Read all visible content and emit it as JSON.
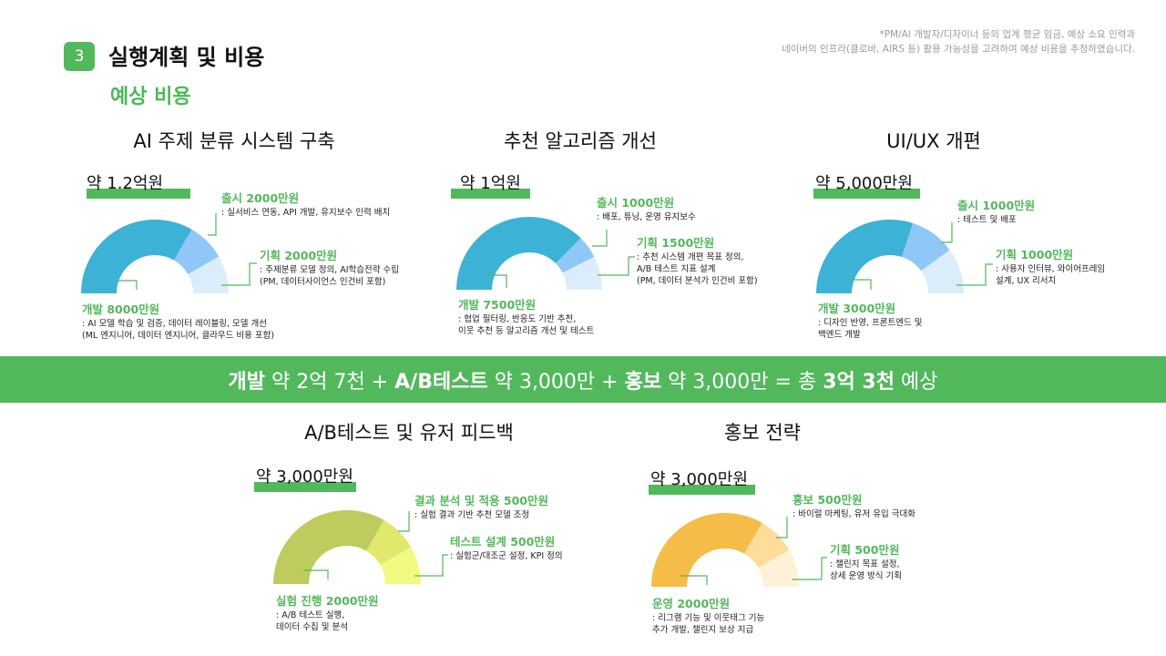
{
  "header": {
    "section_number": "3",
    "section_title": "실행계획 및 비용",
    "subsection_title": "예상 비용",
    "note_lines": [
      "*PM/AI 개발자/디자이너 등의 업계 평균 임금, 예상 소요 인력과",
      "네이버의 인프라(클로바, AIRS 등) 활용 가능성을 고려하여 예상 비용을 추정하였습니다."
    ]
  },
  "summary_banner": {
    "parts": [
      {
        "text": "개발",
        "bold": true
      },
      {
        "text": " 약 2억 7천 + ",
        "bold": false
      },
      {
        "text": "A/B테스트",
        "bold": true
      },
      {
        "text": " 약 3,000만 + ",
        "bold": false
      },
      {
        "text": "홍보",
        "bold": true
      },
      {
        "text": " 약 3,000만 = 총 ",
        "bold": false
      },
      {
        "text": "3억 3천",
        "bold": true
      },
      {
        "text": " 예상",
        "bold": false
      }
    ]
  },
  "chart_data": [
    {
      "type": "pie",
      "shape": "half-donut",
      "title": "AI 주제 분류 시스템 구축",
      "total_label": "약 1.2억원",
      "unit": "만원",
      "accent_color": "#52b85c",
      "slices": [
        {
          "name": "개발",
          "value": 8000,
          "label": "개발 8000만원",
          "desc": ": AI 모델 학습 및 검증, 데이터 레이블링, 모델 개선\n(ML 엔지니어, 데이터 엔지니어, 클라우드 비용 포함)",
          "color": "#3db2d7"
        },
        {
          "name": "출시",
          "value": 2000,
          "label": "출시 2000만원",
          "desc": ": 실서비스 연동, API 개발, 유지보수 인력 배치",
          "color": "#8ec7f8"
        },
        {
          "name": "기획",
          "value": 2000,
          "label": "기획 2000만원",
          "desc": ": 주제분류 모델 정의, AI학습전략 수립\n(PM, 데이터사이언스 인건비 포함)",
          "color": "#dbedfb"
        }
      ]
    },
    {
      "type": "pie",
      "shape": "half-donut",
      "title": "추천 알고리즘 개선",
      "total_label": "약 1억원",
      "unit": "만원",
      "accent_color": "#52b85c",
      "slices": [
        {
          "name": "개발",
          "value": 7500,
          "label": "개발 7500만원",
          "desc": ": 협업 필터링, 반응도 기반 추천,\n이웃 추천 등 알고리즘 개선 및 테스트",
          "color": "#3db2d7"
        },
        {
          "name": "출시",
          "value": 1000,
          "label": "출시 1000만원",
          "desc": ": 배포, 튜닝, 운영 유지보수",
          "color": "#8ec7f8"
        },
        {
          "name": "기획",
          "value": 1500,
          "label": "기획 1500만원",
          "desc": ": 추천 시스템 개편 목표 정의,\nA/B 테스트 지표 설계\n(PM, 데이터 분석가 인건비 포함)",
          "color": "#dbedfb"
        }
      ]
    },
    {
      "type": "pie",
      "shape": "half-donut",
      "title": "UI/UX 개편",
      "total_label": "약 5,000만원",
      "unit": "만원",
      "accent_color": "#52b85c",
      "slices": [
        {
          "name": "개발",
          "value": 3000,
          "label": "개발 3000만원",
          "desc": ": 디자인 반영, 프론트엔드 및\n백엔드 개발",
          "color": "#3db2d7"
        },
        {
          "name": "출시",
          "value": 1000,
          "label": "출시 1000만원",
          "desc": ": 테스트 및 배포",
          "color": "#8ec7f8"
        },
        {
          "name": "기획",
          "value": 1000,
          "label": "기획 1000만원",
          "desc": ": 사용자 인터뷰, 와이어프레임\n설계, UX 리서치",
          "color": "#dbedfb"
        }
      ]
    },
    {
      "type": "pie",
      "shape": "half-donut",
      "title": "A/B테스트 및 유저 피드백",
      "total_label": "약 3,000만원",
      "unit": "만원",
      "accent_color": "#52b85c",
      "slices": [
        {
          "name": "실험 진행",
          "value": 2000,
          "label": "실험 진행 2000만원",
          "desc": ": A/B 테스트 실행,\n데이터 수집 및 분석",
          "color": "#bfcb5c"
        },
        {
          "name": "결과 분석 및 적용",
          "value": 500,
          "label": "결과 분석 및 적용 500만원",
          "desc": ": 실험 결과 기반 추천 모델 조정",
          "color": "#e2e86c"
        },
        {
          "name": "테스트 설계",
          "value": 500,
          "label": "테스트 설계 500만원",
          "desc": ": 실험군/대조군 설정, KPI 정의",
          "color": "#f2fa82"
        }
      ]
    },
    {
      "type": "pie",
      "shape": "half-donut",
      "title": "홍보 전략",
      "total_label": "약 3,000만원",
      "unit": "만원",
      "accent_color": "#52b85c",
      "slices": [
        {
          "name": "운영",
          "value": 2000,
          "label": "운영 2000만원",
          "desc": ": 리그램 기능 및 이웃태그 기능\n추가 개발, 챌린지 보상 지급",
          "color": "#f5bc48"
        },
        {
          "name": "홍보",
          "value": 500,
          "label": "홍보 500만원",
          "desc": ": 바이럴 마케팅, 유저 유입 극대화",
          "color": "#fedc99"
        },
        {
          "name": "기획",
          "value": 500,
          "label": "기획 500만원",
          "desc": ": 챌린지 목표 설정,\n상세 운영 방식 기획",
          "color": "#fdf2d8"
        }
      ]
    }
  ]
}
